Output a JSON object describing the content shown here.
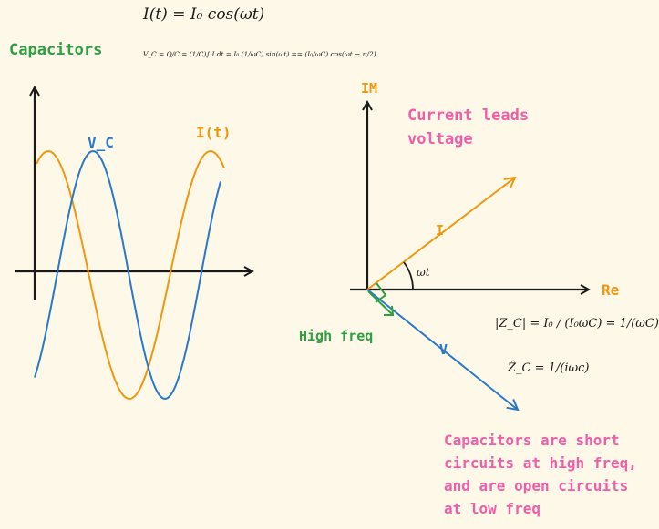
{
  "equations": {
    "current": "I(t) = I₀ cos(ωt)",
    "vc": "V_C = Q/C = (1/C)∫ I dt = I₀ (1/ωC) sin(ωt) == (I₀/ωC) cos(ωt − π/2)",
    "zc_mag": "|Z_C| = I₀ / (I₀ωC) = 1/(ωC)",
    "zc_hat": "Ẑ_C = 1/(iωc)"
  },
  "labels": {
    "capacitors": "Capacitors",
    "vc_curve": "V_C",
    "it_curve": "I(t)",
    "im_axis": "IM",
    "re_axis": "Re",
    "current_leads_1": "Current leads",
    "current_leads_2": "voltage",
    "i_vector": "I",
    "v_vector": "V",
    "angle": "ωt",
    "high_freq": "High freq",
    "short_1": "Capacitors are short",
    "short_2": "circuits at high freq,",
    "short_3": "and are open circuits",
    "short_4": "at low freq"
  },
  "colors": {
    "orange": "#f0960f",
    "blue": "#2a78c8",
    "green": "#2ea043",
    "pink": "#ef5fa8",
    "ink": "#1a1a1a"
  }
}
